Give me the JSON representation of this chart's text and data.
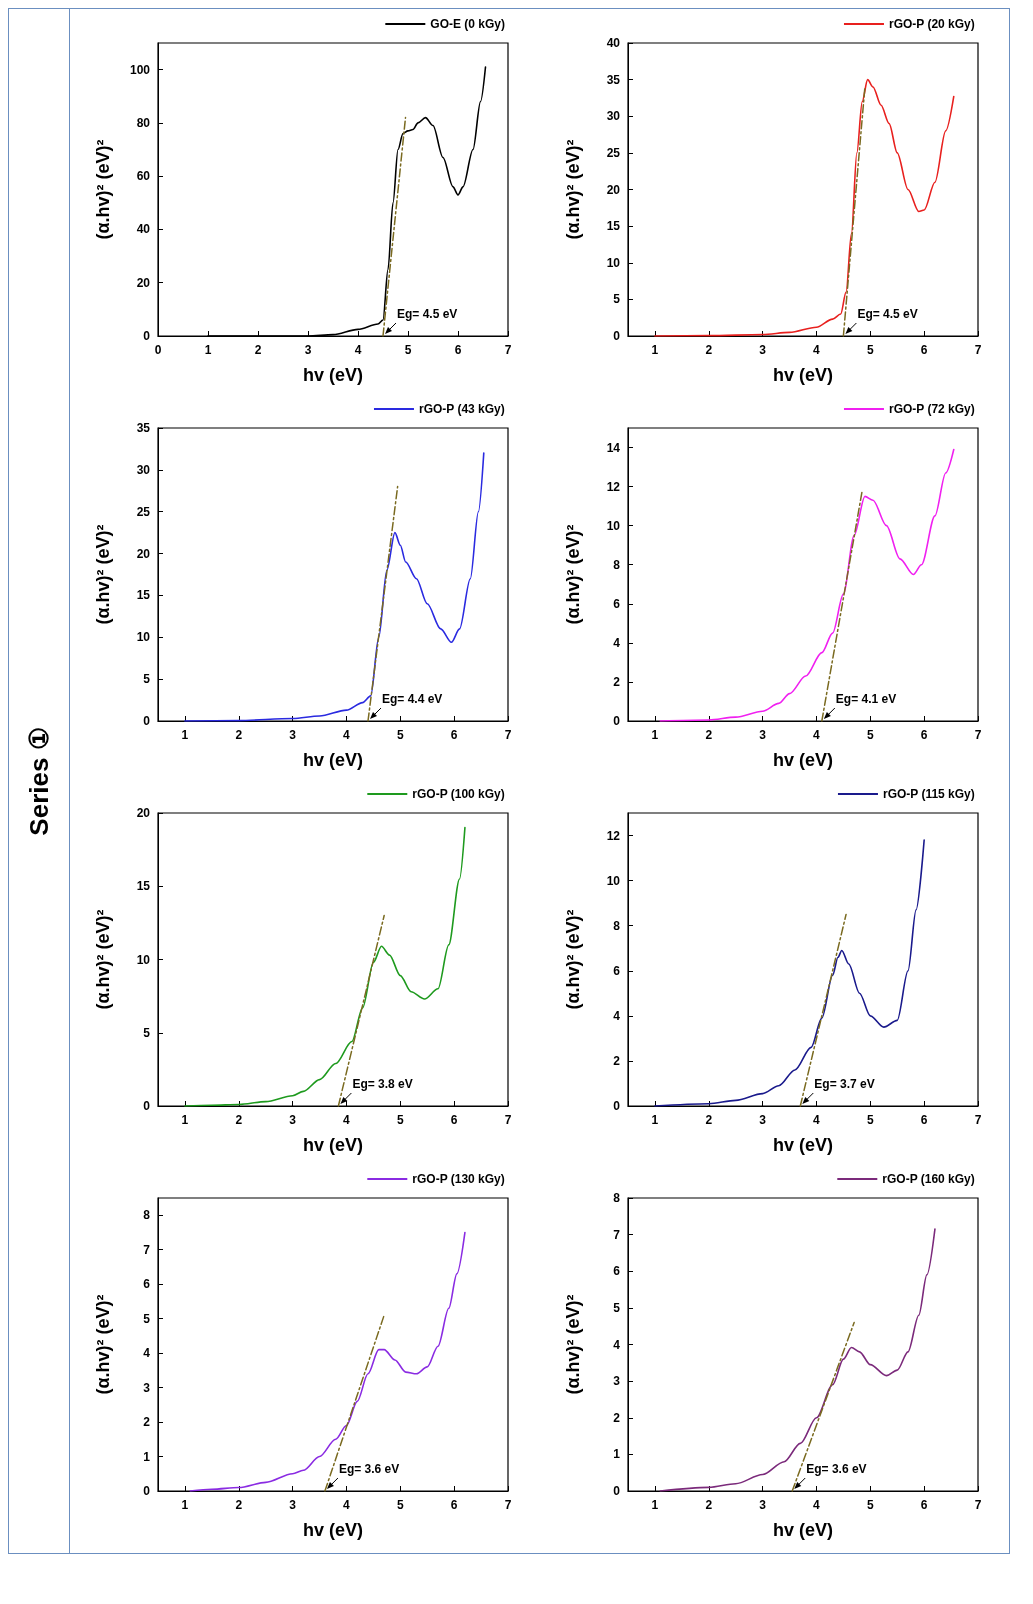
{
  "chart_data": [
    {
      "type": "other",
      "title": "Series ①"
    },
    {
      "type": "line",
      "xlabel": "hv (eV)",
      "ylabel": "(α.hv)² (eV)²",
      "xlim": [
        0,
        7
      ],
      "xticks": [
        0,
        1,
        2,
        3,
        4,
        5,
        6,
        7
      ],
      "ylim": [
        0,
        110
      ],
      "yticks": [
        0,
        20,
        40,
        60,
        80,
        100
      ],
      "legend": "top right",
      "grid": false,
      "annotations": [
        {
          "text": "Eg= 4.5 eV",
          "x": 4.5,
          "y": 0
        }
      ],
      "series": [
        {
          "name": "GO-E (0 kGy)",
          "color": "#000000",
          "x": [
            1,
            2,
            3,
            3.5,
            4,
            4.4,
            4.5,
            4.6,
            4.7,
            4.8,
            4.9,
            5.0,
            5.1,
            5.2,
            5.35,
            5.5,
            5.7,
            5.9,
            6.0,
            6.1,
            6.3,
            6.45,
            6.55
          ],
          "values": [
            0,
            0,
            0,
            0.5,
            2.5,
            4.5,
            6,
            25,
            50,
            70,
            76,
            77,
            77.5,
            80,
            82,
            79,
            67,
            56,
            53,
            56,
            70,
            88,
            101
          ]
        },
        {
          "type": "line",
          "line_style": "dashed",
          "color": "#7a6a20",
          "x": [
            4.5,
            4.95
          ],
          "values": [
            0,
            82
          ]
        }
      ]
    },
    {
      "type": "line",
      "xlabel": "hv (eV)",
      "ylabel": "(α.hv)² (eV)²",
      "xlim": [
        0.5,
        7
      ],
      "xticks": [
        1,
        2,
        3,
        4,
        5,
        6,
        7
      ],
      "ylim": [
        0,
        40
      ],
      "yticks": [
        0,
        5,
        10,
        15,
        20,
        25,
        30,
        35,
        40
      ],
      "legend": "top right",
      "grid": false,
      "annotations": [
        {
          "text": "Eg= 4.5 eV",
          "x": 4.5,
          "y": 0
        }
      ],
      "series": [
        {
          "name": "rGO-P (20 kGy)",
          "color": "#e8201e",
          "x": [
            1,
            2,
            3,
            3.5,
            4,
            4.3,
            4.45,
            4.55,
            4.65,
            4.75,
            4.85,
            4.95,
            5.05,
            5.2,
            5.35,
            5.5,
            5.7,
            5.9,
            6.0,
            6.2,
            6.4,
            6.55
          ],
          "values": [
            0,
            0.05,
            0.2,
            0.5,
            1.2,
            2.3,
            3,
            6,
            14,
            25,
            32,
            35,
            34,
            31.5,
            29,
            25,
            20,
            17,
            17.2,
            21,
            28,
            32.7
          ]
        },
        {
          "type": "line",
          "line_style": "dashed",
          "color": "#7a6a20",
          "x": [
            4.5,
            4.9
          ],
          "values": [
            0,
            34
          ]
        }
      ]
    },
    {
      "type": "line",
      "xlabel": "hv (eV)",
      "ylabel": "(α.hv)² (eV)²",
      "xlim": [
        0.5,
        7
      ],
      "xticks": [
        1,
        2,
        3,
        4,
        5,
        6,
        7
      ],
      "ylim": [
        0,
        35
      ],
      "yticks": [
        0,
        5,
        10,
        15,
        20,
        25,
        30,
        35
      ],
      "legend": "top right",
      "grid": false,
      "annotations": [
        {
          "text": "Eg= 4.4 eV",
          "x": 4.4,
          "y": 0
        }
      ],
      "series": [
        {
          "name": "rGO-P (43 kGy)",
          "color": "#2a2ae0",
          "x": [
            1,
            2,
            3,
            3.5,
            4,
            4.3,
            4.45,
            4.6,
            4.75,
            4.9,
            5.0,
            5.1,
            5.3,
            5.5,
            5.75,
            5.95,
            6.1,
            6.3,
            6.45,
            6.55
          ],
          "values": [
            0,
            0.05,
            0.3,
            0.6,
            1.3,
            2.2,
            3,
            10,
            18,
            22.5,
            21,
            19,
            17,
            14,
            11,
            9.4,
            11,
            17,
            25,
            32
          ]
        },
        {
          "type": "line",
          "line_style": "dashed",
          "color": "#7a6a20",
          "x": [
            4.4,
            4.95
          ],
          "values": [
            0,
            28
          ]
        }
      ]
    },
    {
      "type": "line",
      "xlabel": "hv (eV)",
      "ylabel": "(α.hv)² (eV)²",
      "xlim": [
        0.5,
        7
      ],
      "xticks": [
        1,
        2,
        3,
        4,
        5,
        6,
        7
      ],
      "ylim": [
        0,
        15
      ],
      "yticks": [
        0,
        2,
        4,
        6,
        8,
        10,
        12,
        14
      ],
      "legend": "top right",
      "grid": false,
      "annotations": [
        {
          "text": "Eg= 4.1 eV",
          "x": 4.1,
          "y": 0
        }
      ],
      "series": [
        {
          "name": "rGO-P (72 kGy)",
          "color": "#f020f0",
          "x": [
            1.1,
            2,
            2.5,
            3,
            3.3,
            3.5,
            3.8,
            4.1,
            4.3,
            4.5,
            4.7,
            4.9,
            5.05,
            5.3,
            5.55,
            5.8,
            5.95,
            6.2,
            6.4,
            6.55
          ],
          "values": [
            0,
            0.05,
            0.2,
            0.5,
            0.9,
            1.4,
            2.3,
            3.5,
            4.5,
            6.5,
            9.5,
            11.5,
            11.3,
            10,
            8.3,
            7.5,
            8,
            10.5,
            12.7,
            13.9
          ]
        },
        {
          "type": "line",
          "line_style": "dashed",
          "color": "#7a6a20",
          "x": [
            4.1,
            4.85
          ],
          "values": [
            0,
            11.8
          ]
        }
      ]
    },
    {
      "type": "line",
      "xlabel": "hv (eV)",
      "ylabel": "(α.hv)² (eV)²",
      "xlim": [
        0.5,
        7
      ],
      "xticks": [
        1,
        2,
        3,
        4,
        5,
        6,
        7
      ],
      "ylim": [
        0,
        20
      ],
      "yticks": [
        0,
        5,
        10,
        15,
        20
      ],
      "legend": "top right",
      "grid": false,
      "annotations": [
        {
          "text": "Eg= 3.8 eV",
          "x": 3.85,
          "y": 0
        }
      ],
      "series": [
        {
          "name": "rGO-P (100 kGy)",
          "color": "#1e9a1e",
          "x": [
            1,
            1.5,
            2,
            2.5,
            3,
            3.2,
            3.5,
            3.8,
            4.1,
            4.3,
            4.5,
            4.65,
            4.8,
            5.0,
            5.2,
            5.45,
            5.7,
            5.9,
            6.1,
            6.2
          ],
          "values": [
            0,
            0.05,
            0.1,
            0.3,
            0.7,
            1,
            1.8,
            2.9,
            4.4,
            6.7,
            9.8,
            10.9,
            10.3,
            8.9,
            7.8,
            7.3,
            8,
            11,
            15.5,
            19
          ]
        },
        {
          "type": "line",
          "line_style": "dashed",
          "color": "#7a6a20",
          "x": [
            3.85,
            4.7
          ],
          "values": [
            0,
            13
          ]
        }
      ]
    },
    {
      "type": "line",
      "xlabel": "hv (eV)",
      "ylabel": "(α.hv)² (eV)²",
      "xlim": [
        0.5,
        7
      ],
      "xticks": [
        1,
        2,
        3,
        4,
        5,
        6,
        7
      ],
      "ylim": [
        0,
        13
      ],
      "yticks": [
        0,
        2,
        4,
        6,
        8,
        10,
        12
      ],
      "legend": "top right",
      "grid": false,
      "annotations": [
        {
          "text": "Eg= 3.7 eV",
          "x": 3.7,
          "y": 0
        }
      ],
      "series": [
        {
          "name": "rGO-P (115 kGy)",
          "color": "#1a1a8c",
          "x": [
            1,
            2,
            2.5,
            3,
            3.3,
            3.6,
            3.9,
            4.1,
            4.3,
            4.4,
            4.47,
            4.6,
            4.8,
            5.0,
            5.25,
            5.5,
            5.7,
            5.85,
            6.0
          ],
          "values": [
            0,
            0.1,
            0.25,
            0.55,
            0.9,
            1.6,
            2.6,
            3.9,
            5.8,
            6.6,
            6.9,
            6.3,
            5,
            4,
            3.5,
            3.8,
            6,
            8.7,
            11.8
          ]
        },
        {
          "type": "line",
          "line_style": "dashed",
          "color": "#7a6a20",
          "x": [
            3.7,
            4.55
          ],
          "values": [
            0,
            8.5
          ]
        }
      ]
    },
    {
      "type": "line",
      "xlabel": "hv (eV)",
      "ylabel": "(α.hv)² (eV)²",
      "xlim": [
        0.5,
        7
      ],
      "xticks": [
        1,
        2,
        3,
        4,
        5,
        6,
        7
      ],
      "ylim": [
        0,
        8.5
      ],
      "yticks": [
        0,
        1,
        2,
        3,
        4,
        5,
        6,
        7,
        8
      ],
      "legend": "top right",
      "grid": false,
      "annotations": [
        {
          "text": "Eg= 3.6 eV",
          "x": 3.6,
          "y": 0
        }
      ],
      "series": [
        {
          "name": "rGO-P (130 kGy)",
          "color": "#8a2be2",
          "x": [
            1.1,
            1.5,
            2,
            2.5,
            3,
            3.2,
            3.5,
            3.8,
            4.0,
            4.2,
            4.4,
            4.6,
            4.7,
            4.9,
            5.1,
            5.3,
            5.5,
            5.7,
            5.9,
            6.05,
            6.2
          ],
          "values": [
            0,
            0.05,
            0.1,
            0.25,
            0.5,
            0.6,
            1,
            1.5,
            1.9,
            2.6,
            3.4,
            4.1,
            4.1,
            3.8,
            3.45,
            3.4,
            3.6,
            4.2,
            5.3,
            6.3,
            7.5
          ]
        },
        {
          "type": "line",
          "line_style": "dashed",
          "color": "#7a6a20",
          "x": [
            3.6,
            4.7
          ],
          "values": [
            0,
            5.1
          ]
        }
      ]
    },
    {
      "type": "line",
      "xlabel": "hv (eV)",
      "ylabel": "(α.hv)² (eV)²",
      "xlim": [
        0.5,
        7
      ],
      "xticks": [
        1,
        2,
        3,
        4,
        5,
        6,
        7
      ],
      "ylim": [
        0,
        8
      ],
      "yticks": [
        0,
        1,
        2,
        3,
        4,
        5,
        6,
        7,
        8
      ],
      "legend": "top right",
      "grid": false,
      "annotations": [
        {
          "text": "Eg= 3.6 eV",
          "x": 3.55,
          "y": 0
        }
      ],
      "series": [
        {
          "name": "rGO-P (160 kGy)",
          "color": "#7b2a7b",
          "x": [
            1.1,
            2,
            2.5,
            3,
            3.4,
            3.7,
            4.0,
            4.3,
            4.5,
            4.65,
            4.8,
            5.0,
            5.3,
            5.5,
            5.7,
            5.9,
            6.05,
            6.2
          ],
          "values": [
            0,
            0.1,
            0.2,
            0.45,
            0.8,
            1.3,
            2.0,
            2.9,
            3.6,
            3.92,
            3.8,
            3.45,
            3.15,
            3.3,
            3.8,
            4.8,
            5.9,
            7.15
          ]
        },
        {
          "type": "line",
          "line_style": "dashed",
          "color": "#7a6a20",
          "x": [
            3.55,
            4.7
          ],
          "values": [
            0,
            4.6
          ]
        }
      ]
    }
  ]
}
